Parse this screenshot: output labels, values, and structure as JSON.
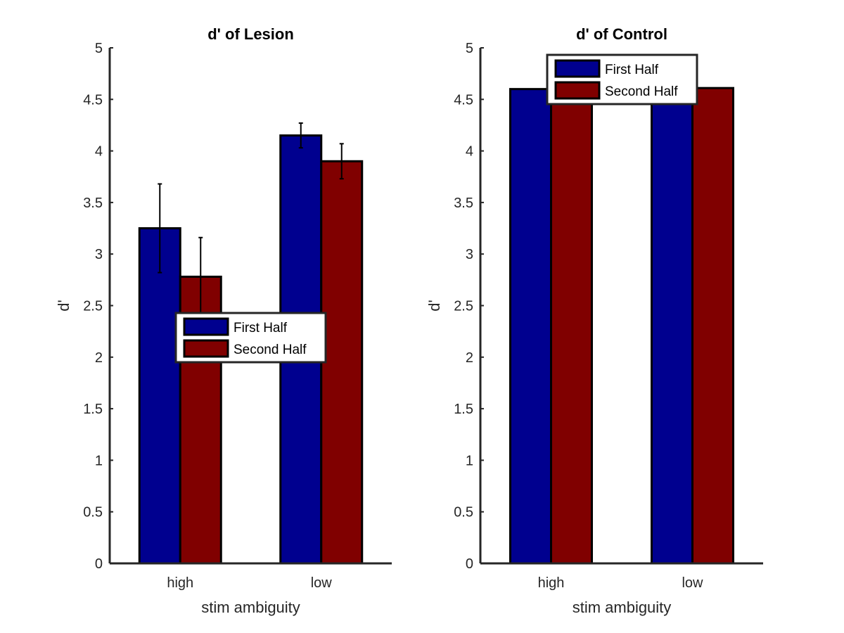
{
  "chart_data": [
    {
      "type": "bar",
      "title": "d' of Lesion",
      "xlabel": "stim ambiguity",
      "ylabel": "d'",
      "categories": [
        "high",
        "low"
      ],
      "ylim": [
        0,
        5
      ],
      "yticks": [
        "0",
        "0.5",
        "1",
        "1.5",
        "2",
        "2.5",
        "3",
        "3.5",
        "4",
        "4.5",
        "5"
      ],
      "legend_position": "center",
      "series": [
        {
          "name": "First Half",
          "color": "#00008f",
          "values": [
            3.25,
            4.15
          ],
          "errors": [
            0.43,
            0.12
          ]
        },
        {
          "name": "Second Half",
          "color": "#800000",
          "values": [
            2.78,
            3.9
          ],
          "errors": [
            0.38,
            0.17
          ]
        }
      ]
    },
    {
      "type": "bar",
      "title": "d' of Control",
      "xlabel": "stim ambiguity",
      "ylabel": "d'",
      "categories": [
        "high",
        "low"
      ],
      "ylim": [
        0,
        5
      ],
      "yticks": [
        "0",
        "0.5",
        "1",
        "1.5",
        "2",
        "2.5",
        "3",
        "3.5",
        "4",
        "4.5",
        "5"
      ],
      "legend_position": "top",
      "series": [
        {
          "name": "First Half",
          "color": "#00008f",
          "values": [
            4.6,
            4.6
          ],
          "errors": [
            0,
            0
          ]
        },
        {
          "name": "Second Half",
          "color": "#800000",
          "values": [
            4.61,
            4.61
          ],
          "errors": [
            0,
            0
          ]
        }
      ]
    }
  ]
}
